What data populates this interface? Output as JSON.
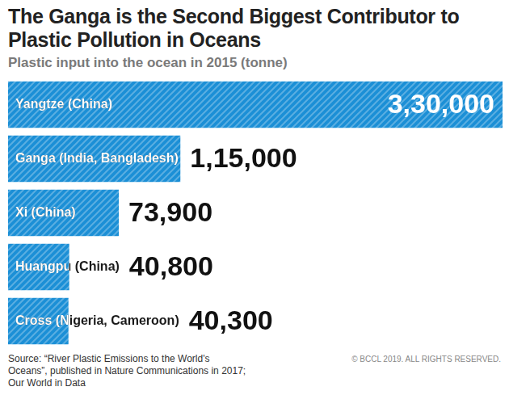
{
  "chart_data": {
    "type": "bar",
    "title": "The Ganga is the Second Biggest Contributor to Plastic Pollution in Oceans",
    "subtitle": "Plastic input into the ocean in 2015 (tonne)",
    "orientation": "horizontal",
    "categories": [
      "Yangtze (China)",
      "Ganga (India, Bangladesh)",
      "Xi (China)",
      "Huangpu (China)",
      "Cross (Nigeria, Cameroon)"
    ],
    "values": [
      330000,
      115000,
      73900,
      40800,
      40300
    ],
    "value_labels": [
      "3,30,000",
      "1,15,000",
      "73,900",
      "40,800",
      "40,300"
    ],
    "color": "#1b8fd6",
    "data_labels": true,
    "tick_labels": false,
    "grid": false,
    "source": "Source: “River Plastic Emissions to the World's Oceans”, published in Nature Communications in 2017; Our World in Data",
    "annotations": [
      "© BCCL 2019. ALL RIGHTS RESERVED."
    ]
  }
}
